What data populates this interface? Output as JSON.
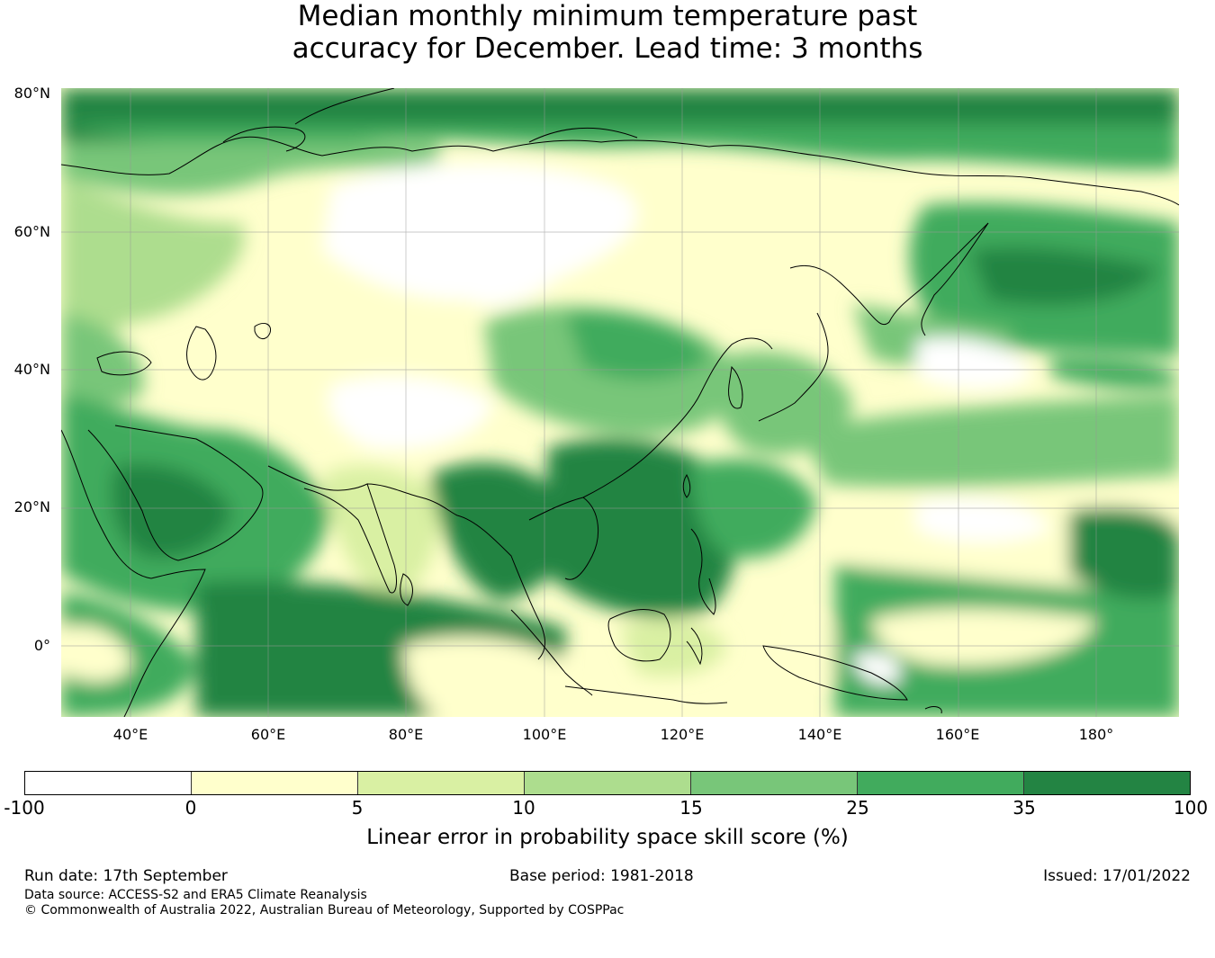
{
  "title": {
    "line1": "Median monthly minimum temperature past",
    "line2": "accuracy for December. Lead time: 3 months"
  },
  "map": {
    "region": "Asia / Western Pacific",
    "lat_labels": [
      "80°N",
      "60°N",
      "40°N",
      "20°N",
      "0°"
    ],
    "lon_labels": [
      "40°E",
      "60°E",
      "80°E",
      "100°E",
      "120°E",
      "140°E",
      "160°E",
      "180°"
    ],
    "gridlines": true,
    "coastline_color": "#000000"
  },
  "colorbar": {
    "ticks": [
      "-100",
      "0",
      "5",
      "10",
      "15",
      "25",
      "35",
      "100"
    ],
    "colors": [
      "#ffffff",
      "#ffffcc",
      "#d9f0a3",
      "#addd8e",
      "#78c679",
      "#41ab5d",
      "#238443"
    ],
    "label": "Linear error in probability space skill score (%)"
  },
  "footer": {
    "run_date": "Run date: 17th September",
    "base_period": "Base period: 1981-2018",
    "issued": "Issued: 17/01/2022",
    "data_source": "Data source: ACCESS-S2 and ERA5 Climate Reanalysis",
    "copyright": "© Commonwealth of Australia 2022, Australian Bureau of Meteorology, Supported by COSPPac"
  }
}
